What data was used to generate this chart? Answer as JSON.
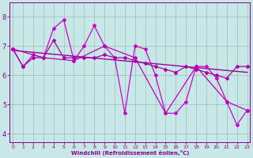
{
  "series": [
    {
      "x": [
        0,
        1,
        2,
        3,
        4,
        5,
        6,
        7,
        8,
        9,
        10,
        11,
        12,
        13,
        14,
        15,
        16,
        17,
        18,
        19,
        20,
        21,
        22,
        23
      ],
      "y": [
        6.9,
        6.3,
        6.7,
        6.6,
        7.6,
        7.9,
        6.5,
        7.0,
        7.7,
        7.0,
        6.6,
        4.7,
        7.0,
        6.9,
        6.0,
        4.7,
        4.7,
        5.1,
        6.3,
        6.3,
        5.9,
        5.1,
        4.3,
        4.8
      ],
      "color": "#cc00cc",
      "lw": 0.9
    },
    {
      "x": [
        0,
        1,
        2,
        3,
        4,
        5,
        6,
        7,
        8,
        9,
        10,
        11,
        12,
        13,
        14,
        15,
        16,
        17,
        18,
        19,
        20,
        21,
        22,
        23
      ],
      "y": [
        6.9,
        6.3,
        6.6,
        6.6,
        7.2,
        6.6,
        6.6,
        6.6,
        6.6,
        6.7,
        6.6,
        6.6,
        6.5,
        6.4,
        6.3,
        6.2,
        6.1,
        6.3,
        6.2,
        6.1,
        6.0,
        5.9,
        6.3,
        6.3
      ],
      "color": "#aa00aa",
      "lw": 0.9
    },
    {
      "x": [
        0,
        3,
        6,
        9,
        12,
        15,
        18,
        21,
        23
      ],
      "y": [
        6.9,
        6.6,
        6.5,
        7.0,
        6.6,
        4.7,
        6.3,
        5.1,
        4.8
      ],
      "color": "#bb00bb",
      "lw": 0.9
    },
    {
      "x": [
        0,
        23
      ],
      "y": [
        6.85,
        6.1
      ],
      "color": "#990099",
      "lw": 1.0
    }
  ],
  "xlabel": "Windchill (Refroidissement éolien,°C)",
  "xticks": [
    0,
    1,
    2,
    3,
    4,
    5,
    6,
    7,
    8,
    9,
    10,
    11,
    12,
    13,
    14,
    15,
    16,
    17,
    18,
    19,
    20,
    21,
    22,
    23
  ],
  "yticks": [
    4,
    5,
    6,
    7,
    8
  ],
  "ylim": [
    3.7,
    8.5
  ],
  "xlim": [
    -0.3,
    23.3
  ],
  "bg_color": "#c8e8e8",
  "grid_color": "#a0c4c4",
  "spine_color": "#880088",
  "tick_color": "#880088",
  "label_color": "#880088",
  "marker": "D",
  "markersize": 2.0
}
